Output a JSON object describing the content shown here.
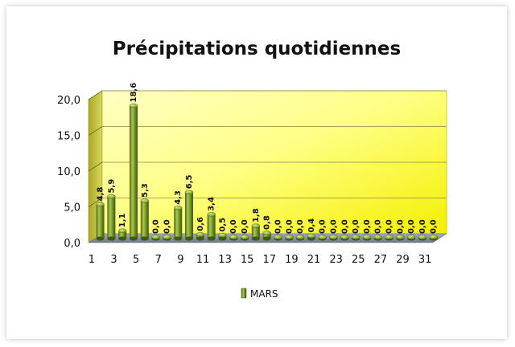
{
  "chart_data": {
    "type": "bar",
    "title": "Précipitations quotidiennes",
    "xlabel": "",
    "ylabel": "",
    "series": [
      {
        "name": "MARS",
        "values": [
          4.8,
          5.9,
          1.1,
          18.6,
          5.3,
          0,
          0,
          4.3,
          6.5,
          0.6,
          3.4,
          0.5,
          0,
          0,
          1.8,
          0.8,
          0,
          0,
          0,
          0.4,
          0,
          0,
          0,
          0,
          0,
          0,
          0,
          0,
          0,
          0,
          0
        ],
        "labels": [
          "4,8",
          "5,9",
          "1,1",
          "18,6",
          "5,3",
          "0,0",
          "0,0",
          "4,3",
          "6,5",
          "0,6",
          "3,4",
          "0,5",
          "0,0",
          "0,0",
          "1,8",
          "0,8",
          "0,0",
          "0,0",
          "0,0",
          "0,4",
          "0,0",
          "0,0",
          "0,0",
          "0,0",
          "0,0",
          "0,0",
          "0,0",
          "0,0",
          "0,0",
          "0,0",
          "0,0"
        ]
      }
    ],
    "categories": [
      "1",
      "2",
      "3",
      "4",
      "5",
      "6",
      "7",
      "8",
      "9",
      "10",
      "11",
      "12",
      "13",
      "14",
      "15",
      "16",
      "17",
      "18",
      "19",
      "20",
      "21",
      "22",
      "23",
      "24",
      "25",
      "26",
      "27",
      "28",
      "29",
      "30",
      "31"
    ],
    "x_tick_labels": [
      "1",
      "3",
      "5",
      "7",
      "9",
      "11",
      "13",
      "15",
      "17",
      "19",
      "21",
      "23",
      "25",
      "27",
      "29",
      "31"
    ],
    "y_ticks": [
      0,
      5,
      10,
      15,
      20
    ],
    "y_tick_labels": [
      "0,0",
      "5,0",
      "10,0",
      "15,0",
      "20,0"
    ],
    "ylim": [
      0,
      20
    ],
    "grid": true,
    "legend_position": "bottom",
    "bar_style": "3d-cylinder",
    "colors": {
      "bar": "#7a9a2e",
      "bar_light": "#b5d05a",
      "bar_dark": "#3f5a14",
      "wall_light": "#ffffb0",
      "wall_yellow": "#ffff33",
      "side_wall": "#c8c832",
      "floor": "#8c9aa8"
    }
  }
}
